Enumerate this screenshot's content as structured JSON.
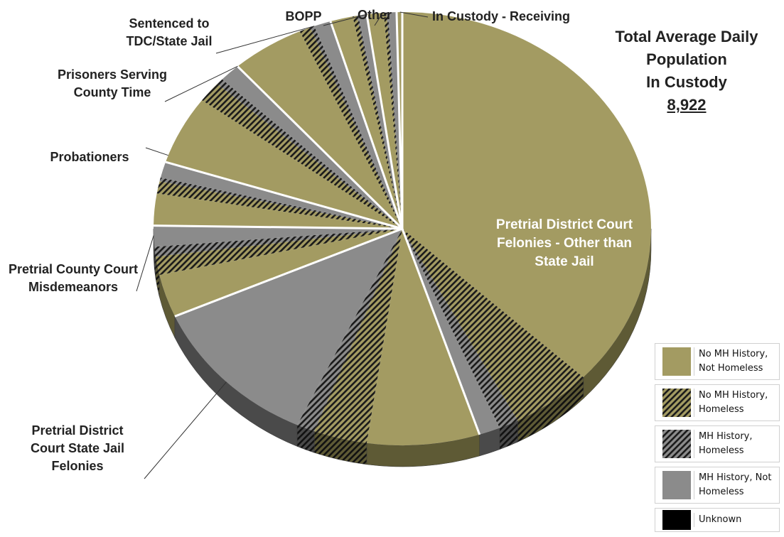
{
  "chart_data": {
    "type": "pie",
    "title": "Total  Average Daily\nPopulation\nIn Custody",
    "total": "8,922",
    "categories": [
      "Pretrial District Court Felonies - Other than State Jail",
      "Pretrial District Court State Jail Felonies",
      "Pretrial County Court Misdemeanors",
      "Probationers",
      "Prisoners Serving County Time",
      "Sentenced to TDC/State Jail",
      "BOPP",
      "Other",
      "In Custody - Receiving"
    ],
    "category_labels": [
      [
        "Pretrial District Court",
        "Felonies - Other than",
        "State Jail"
      ],
      [
        "Pretrial District",
        "Court State Jail",
        "Felonies"
      ],
      [
        "Pretrial County Court",
        "Misdemeanors"
      ],
      [
        "Probationers"
      ],
      [
        "Prisoners Serving",
        "County Time"
      ],
      [
        "Sentenced to",
        "TDC/State Jail"
      ],
      [
        "BOPP"
      ],
      [
        "Other"
      ],
      [
        "In Custody - Receiving"
      ]
    ],
    "series": [
      {
        "name": "No MH History, Not Homeless",
        "values": [
          40.5,
          8.0,
          3.5,
          2.6,
          5.6,
          5.2,
          1.6,
          1.2,
          0.35
        ]
      },
      {
        "name": "No MH History, Homeless",
        "values": [
          5.8,
          3.8,
          1.5,
          1.0,
          1.7,
          0.8,
          0.3,
          0.2,
          0.0
        ]
      },
      {
        "name": "MH History, Homeless",
        "values": [
          1.4,
          1.3,
          0.8,
          0.3,
          0.5,
          0.3,
          0.1,
          0.1,
          0.0
        ]
      },
      {
        "name": "MH History, Not Homeless",
        "values": [
          1.5,
          12.5,
          1.7,
          1.3,
          1.5,
          1.2,
          0.6,
          0.6,
          0.05
        ]
      },
      {
        "name": "Unknown",
        "values": [
          0.0,
          0.0,
          0.0,
          0.0,
          0.0,
          0.0,
          0.0,
          0.0,
          0.0
        ]
      }
    ]
  },
  "legend": {
    "items": [
      {
        "label": "No MH History,\nNot Homeless",
        "pattern": "solid-olive"
      },
      {
        "label": "No MH History,\nHomeless",
        "pattern": "hatch-olive"
      },
      {
        "label": "MH History,\nHomeless",
        "pattern": "hatch-gray"
      },
      {
        "label": "MH History, Not\nHomeless",
        "pattern": "solid-gray"
      },
      {
        "label": "Unknown",
        "pattern": "solid-black"
      }
    ]
  },
  "colors": {
    "olive": "#a39b62",
    "olive_dark": "#5e5a35",
    "gray": "#8b8b8b",
    "gray_dark": "#4a4a4a",
    "black": "#000000",
    "hatch_line": "#1a1a1a"
  }
}
